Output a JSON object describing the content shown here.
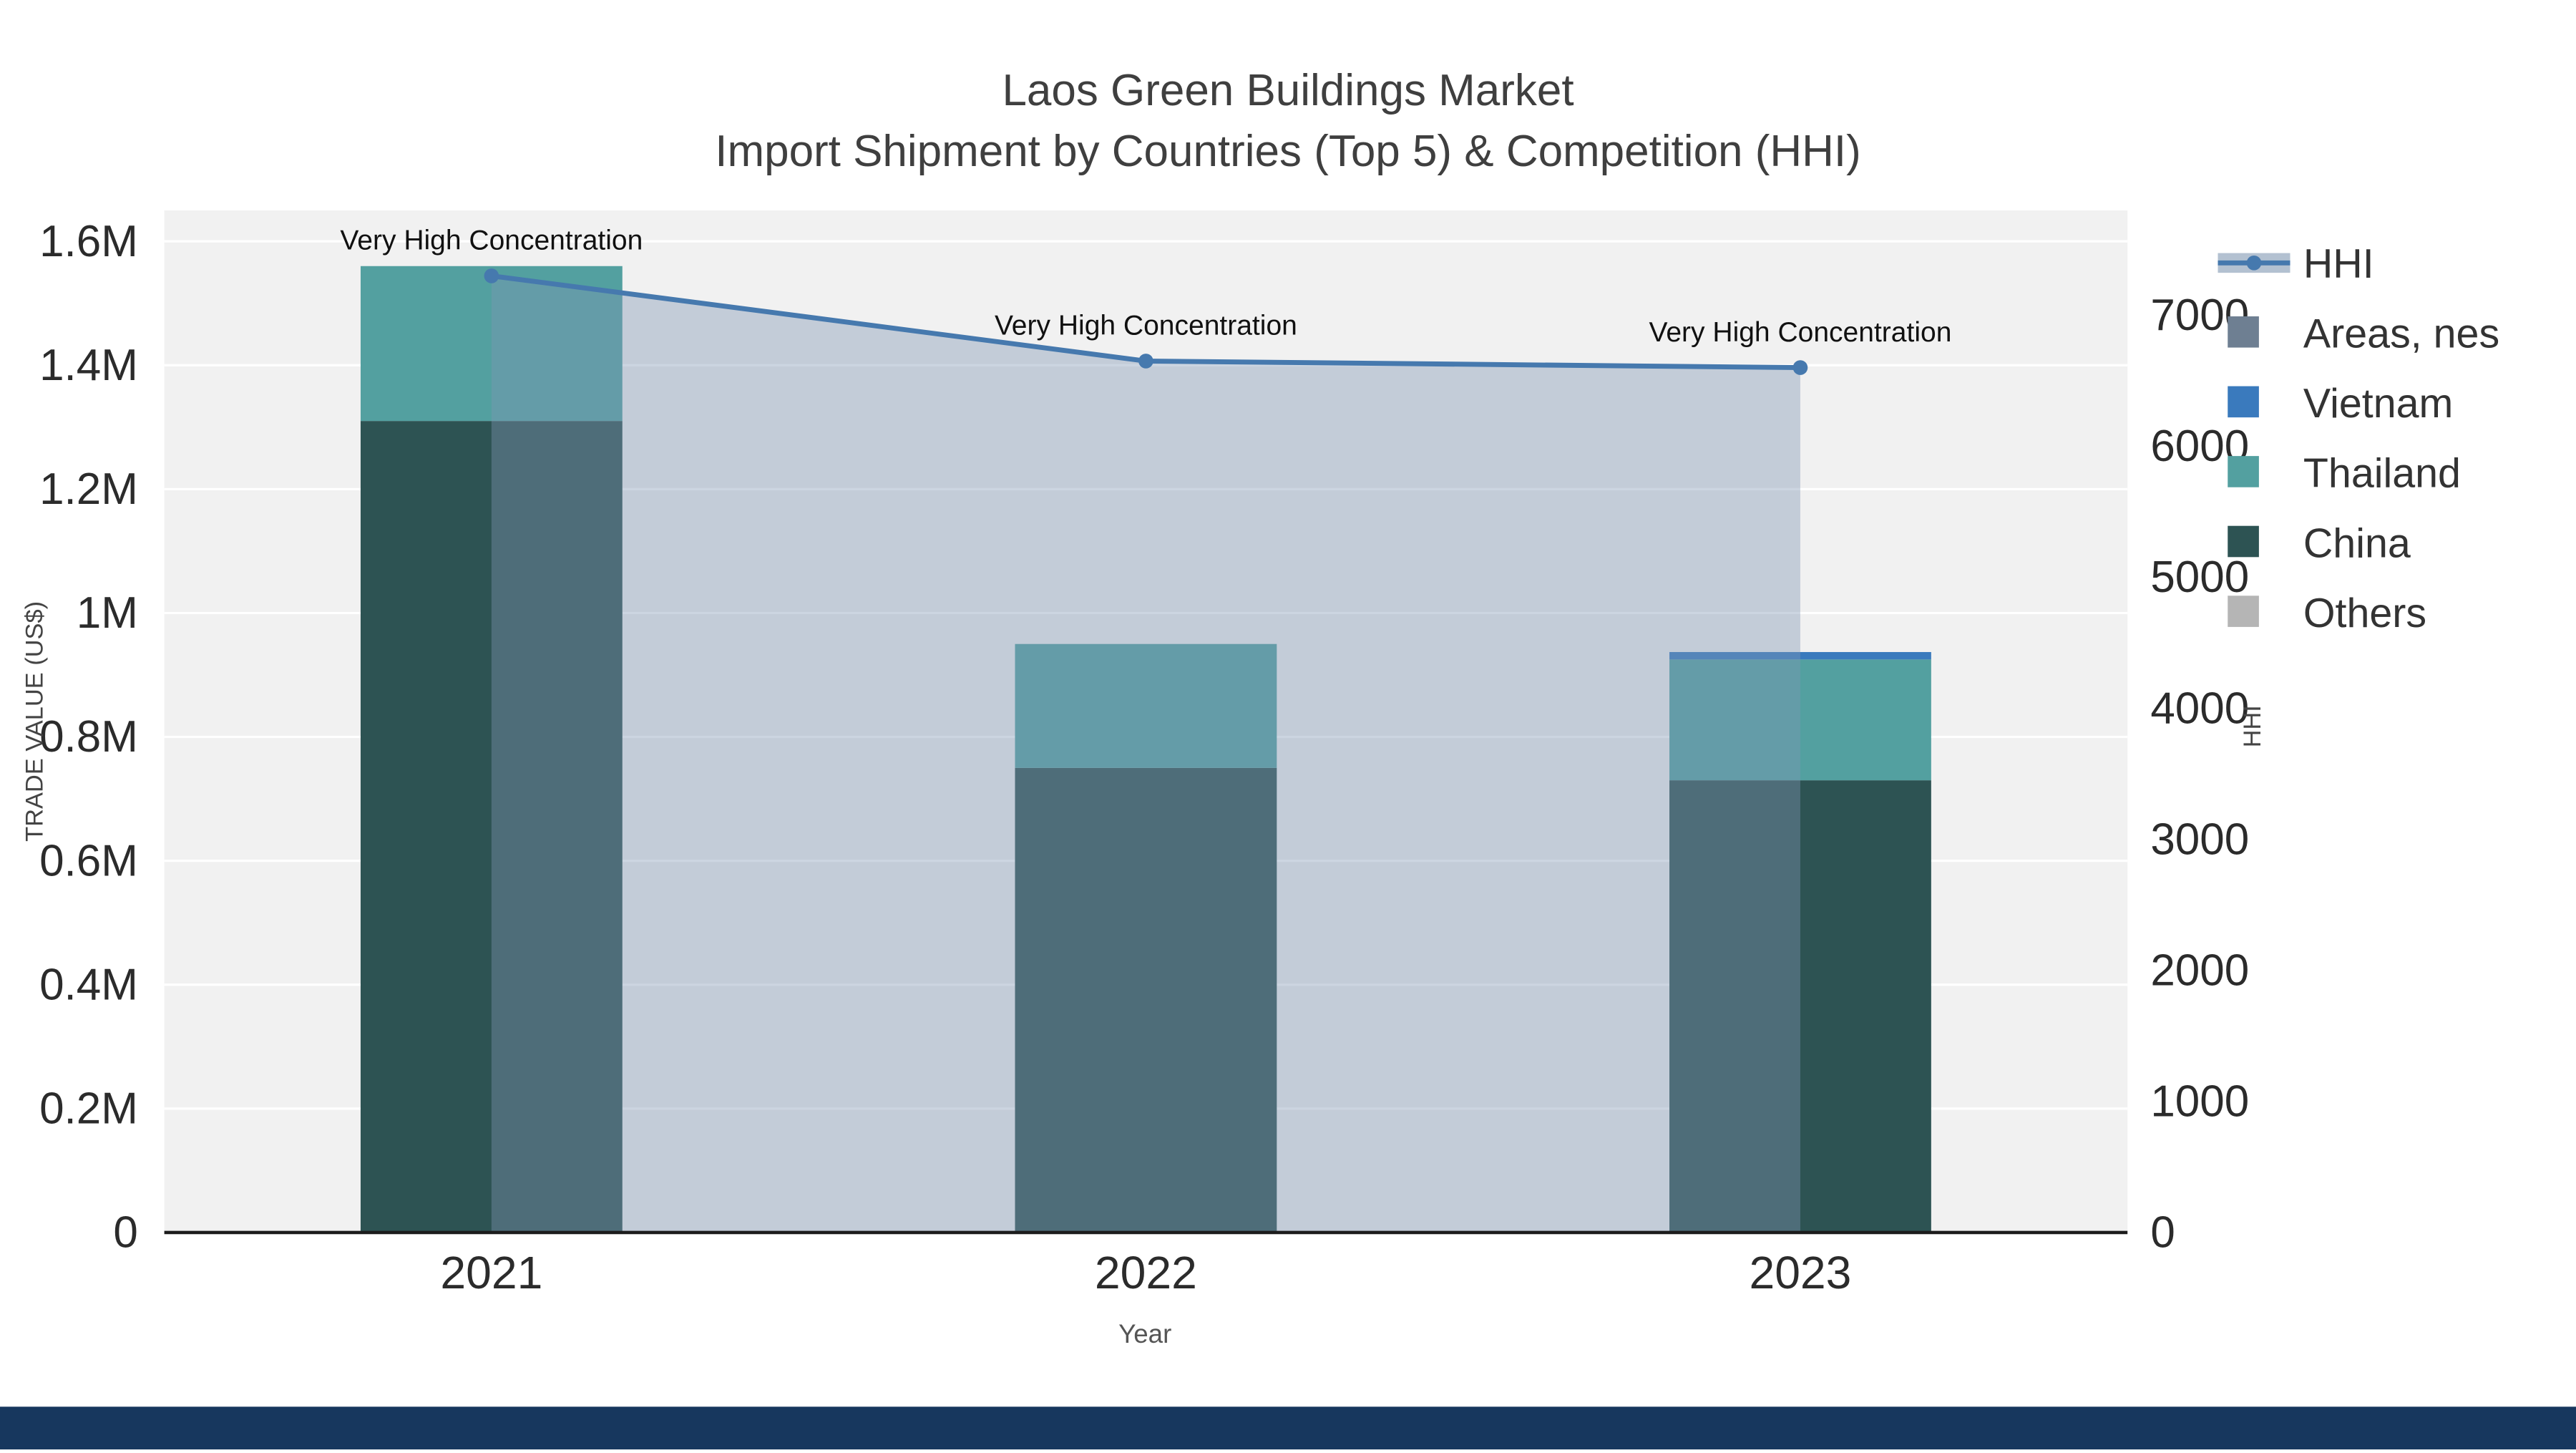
{
  "page": {
    "footer_bar_color": "#17375e",
    "background_color": "#ffffff"
  },
  "chart_data": {
    "type": "combo (stacked bar + line area)",
    "title": "Laos Green Buildings Market",
    "subtitle": "Import Shipment by Countries (Top 5) & Competition (HHI)",
    "xlabel": "Year",
    "ylabel_left": "TRADE VALUE (US$)",
    "ylabel_right": "HHI",
    "categories": [
      "2021",
      "2022",
      "2023"
    ],
    "bar_series": [
      {
        "name": "Others",
        "color": "#b5b5b5",
        "values": [
          0,
          0,
          0
        ]
      },
      {
        "name": "China",
        "color": "#2d5353",
        "values": [
          1310000,
          750000,
          730000
        ]
      },
      {
        "name": "Thailand",
        "color": "#53a0a0",
        "values": [
          250000,
          200000,
          195000
        ]
      },
      {
        "name": "Vietnam",
        "color": "#3a7abd",
        "values": [
          0,
          0,
          12000
        ]
      },
      {
        "name": "Areas, nes",
        "color": "#6e7f92",
        "values": [
          0,
          0,
          0
        ]
      }
    ],
    "line_series": {
      "name": "HHI",
      "color": "#4679ae",
      "fill": "#8097b3",
      "fill_opacity": 0.4,
      "values": [
        7300,
        6650,
        6600
      ]
    },
    "annotations": [
      "Very High Concentration",
      "Very High Concentration",
      "Very High Concentration"
    ],
    "y_left": {
      "min": 0,
      "max": 1650000,
      "ticks": [
        {
          "v": 0,
          "label": "0"
        },
        {
          "v": 200000,
          "label": "0.2M"
        },
        {
          "v": 400000,
          "label": "0.4M"
        },
        {
          "v": 600000,
          "label": "0.6M"
        },
        {
          "v": 800000,
          "label": "0.8M"
        },
        {
          "v": 1000000,
          "label": "1M"
        },
        {
          "v": 1200000,
          "label": "1.2M"
        },
        {
          "v": 1400000,
          "label": "1.4M"
        },
        {
          "v": 1600000,
          "label": "1.6M"
        }
      ]
    },
    "y_right": {
      "min": 0,
      "max": 7800,
      "ticks": [
        {
          "v": 0,
          "label": "0"
        },
        {
          "v": 1000,
          "label": "1000"
        },
        {
          "v": 2000,
          "label": "2000"
        },
        {
          "v": 3000,
          "label": "3000"
        },
        {
          "v": 4000,
          "label": "4000"
        },
        {
          "v": 5000,
          "label": "5000"
        },
        {
          "v": 6000,
          "label": "6000"
        },
        {
          "v": 7000,
          "label": "7000"
        }
      ]
    },
    "legend": [
      {
        "name": "HHI",
        "type": "line",
        "color": "#4679ae"
      },
      {
        "name": "Areas, nes",
        "type": "square",
        "color": "#6e7f92"
      },
      {
        "name": "Vietnam",
        "type": "square",
        "color": "#3a7abd"
      },
      {
        "name": "Thailand",
        "type": "square",
        "color": "#53a0a0"
      },
      {
        "name": "China",
        "type": "square",
        "color": "#2d5353"
      },
      {
        "name": "Others",
        "type": "square",
        "color": "#b5b5b5"
      }
    ],
    "grid": "horizontal white gridlines on light gray plot background",
    "legend_position": "right"
  }
}
